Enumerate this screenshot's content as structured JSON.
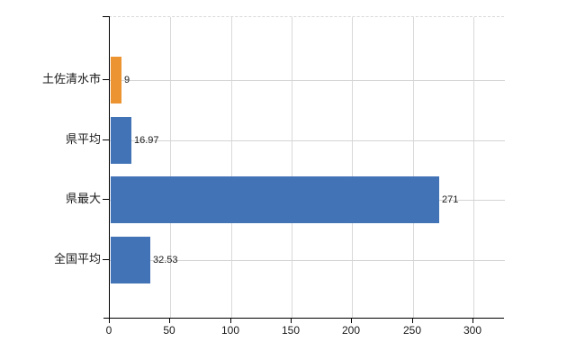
{
  "chart_data": {
    "type": "bar",
    "orientation": "horizontal",
    "title": "",
    "xlabel": "",
    "ylabel": "",
    "categories": [
      "土佐清水市",
      "県平均",
      "県最大",
      "全国平均"
    ],
    "values": [
      9,
      16.97,
      271,
      32.53
    ],
    "value_labels": [
      "9",
      "16.97",
      "271",
      "32.53"
    ],
    "bar_colors": [
      "#ec9332",
      "#4373b7",
      "#4373b7",
      "#4373b7"
    ],
    "xlim": [
      0,
      326
    ],
    "xticks": [
      0,
      50,
      100,
      150,
      200,
      250,
      300
    ],
    "xtick_labels": [
      "0",
      "50",
      "100",
      "150",
      "200",
      "250",
      "300"
    ],
    "grid": true,
    "legend": false
  },
  "colors": {
    "highlight_bar": "#ec9332",
    "default_bar": "#4373b7",
    "vertical_gridline": "#d9d9d9",
    "horizontal_gridline": "#d4d4d4",
    "axis": "#000000",
    "text": "#1a1a1a",
    "background": "#ffffff"
  }
}
